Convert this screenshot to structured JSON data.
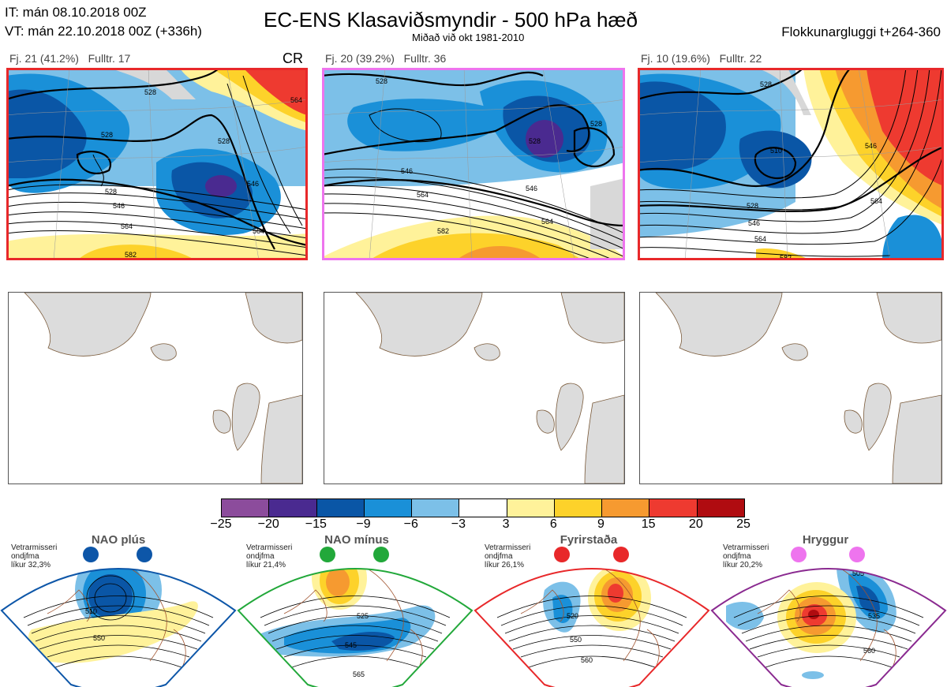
{
  "header": {
    "it_line": "IT: mán 08.10.2018 00Z",
    "vt_line": "VT: mán 22.10.2018 00Z  (+336h)",
    "title": "EC-ENS Klasaviðsmyndir - 500 hPa hæð",
    "subtitle": "Miðað við okt 1981-2010",
    "window": "Flokkunargluggi t+264-360"
  },
  "clusters": [
    {
      "label": "Fj. 21 (41.2%)",
      "rep": "Fulltr. 17",
      "regime_tag": "CR",
      "frame_color": "#e8282a",
      "contour_labels": [
        "528",
        "528",
        "528",
        "528",
        "546",
        "564",
        "582",
        "546",
        "564",
        "564"
      ]
    },
    {
      "label": "Fj. 20 (39.2%)",
      "rep": "Fulltr. 36",
      "regime_tag": "",
      "frame_color": "#ee74ee",
      "contour_labels": [
        "528",
        "528",
        "528",
        "546",
        "564",
        "546",
        "564",
        "582"
      ]
    },
    {
      "label": "Fj. 10 (19.6%)",
      "rep": "Fulltr. 22",
      "regime_tag": "",
      "frame_color": "#e8282a",
      "contour_labels": [
        "528",
        "510",
        "528",
        "546",
        "564",
        "546",
        "564",
        "582"
      ]
    }
  ],
  "colorbar": {
    "ticks": [
      "−25",
      "−20",
      "−15",
      "−9",
      "−6",
      "−3",
      "3",
      "6",
      "9",
      "15",
      "20",
      "25"
    ],
    "colors": [
      "#8c4c9c",
      "#4a2a90",
      "#0a56a6",
      "#1a90d8",
      "#7cc0e8",
      "#ffffff",
      "#fff29a",
      "#fdd22a",
      "#f69a30",
      "#ee3a30",
      "#b00c10"
    ]
  },
  "regimes": [
    {
      "name": "NAO plús",
      "season": "Vetrarmisseri",
      "unit": "ondjfma",
      "prob": "líkur 32,3%",
      "dot_color": "#0d56a8",
      "frame_color": "#0d56a8",
      "contour_labels": [
        "510",
        "550"
      ]
    },
    {
      "name": "NAO mínus",
      "season": "Vetrarmisseri",
      "unit": "ondjfma",
      "prob": "líkur 21,4%",
      "dot_color": "#22a83a",
      "frame_color": "#22a83a",
      "contour_labels": [
        "525",
        "545",
        "565"
      ]
    },
    {
      "name": "Fyrirstaða",
      "season": "Vetrarmisseri",
      "unit": "ondjfma",
      "prob": "líkur 26,1%",
      "dot_color": "#e8282a",
      "frame_color": "#e8282a",
      "contour_labels": [
        "520",
        "550",
        "560"
      ]
    },
    {
      "name": "Hryggur",
      "season": "Vetrarmisseri",
      "unit": "ondjfma",
      "prob": "líkur 20,2%",
      "dot_color": "#ee74ee",
      "frame_color": "#8a2a90",
      "contour_labels": [
        "505",
        "535",
        "560"
      ]
    }
  ]
}
